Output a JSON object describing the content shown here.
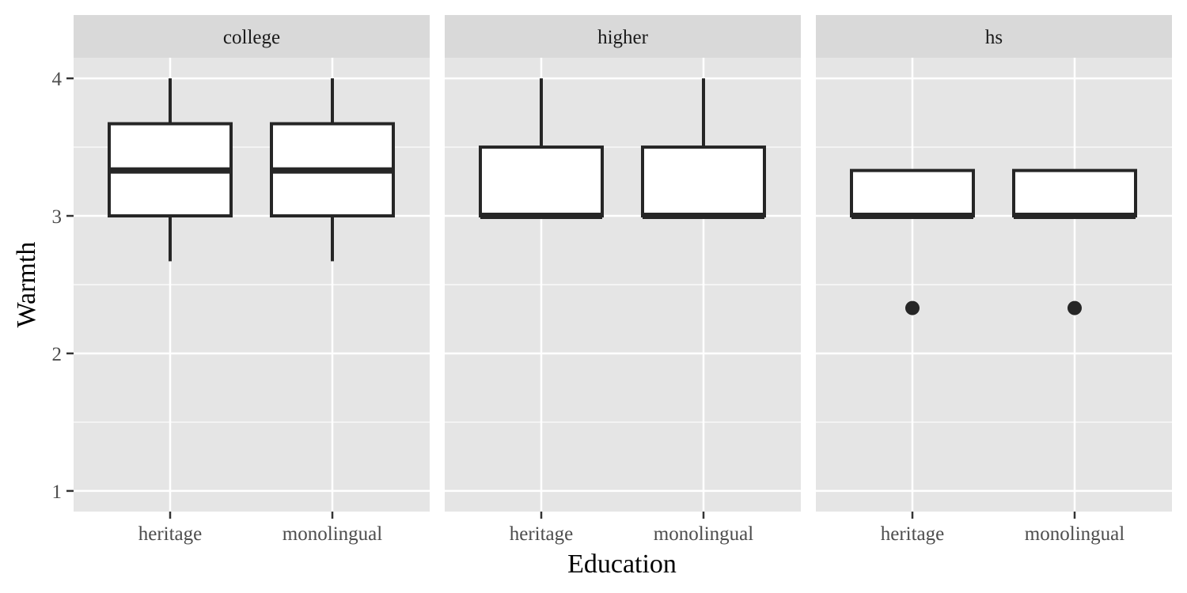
{
  "chart_data": {
    "type": "box",
    "xlabel": "Education",
    "ylabel": "Warmth",
    "ylim": [
      0.85,
      4.15
    ],
    "yticks": [
      1,
      2,
      3,
      4
    ],
    "categories": [
      "heritage",
      "monolingual"
    ],
    "facets": [
      {
        "label": "college",
        "boxes": [
          {
            "category": "heritage",
            "whisker_low": 2.67,
            "q1": 3.0,
            "median": 3.33,
            "q3": 3.67,
            "whisker_high": 4.0,
            "outliers": []
          },
          {
            "category": "monolingual",
            "whisker_low": 2.67,
            "q1": 3.0,
            "median": 3.33,
            "q3": 3.67,
            "whisker_high": 4.0,
            "outliers": []
          }
        ]
      },
      {
        "label": "higher",
        "boxes": [
          {
            "category": "heritage",
            "whisker_low": 3.0,
            "q1": 3.0,
            "median": 3.0,
            "q3": 3.5,
            "whisker_high": 4.0,
            "outliers": []
          },
          {
            "category": "monolingual",
            "whisker_low": 3.0,
            "q1": 3.0,
            "median": 3.0,
            "q3": 3.5,
            "whisker_high": 4.0,
            "outliers": []
          }
        ]
      },
      {
        "label": "hs",
        "boxes": [
          {
            "category": "heritage",
            "whisker_low": 3.0,
            "q1": 3.0,
            "median": 3.0,
            "q3": 3.33,
            "whisker_high": 3.33,
            "outliers": [
              2.33
            ]
          },
          {
            "category": "monolingual",
            "whisker_low": 3.0,
            "q1": 3.0,
            "median": 3.0,
            "q3": 3.33,
            "whisker_high": 3.33,
            "outliers": [
              2.33
            ]
          }
        ]
      }
    ],
    "colors": {
      "panel_background": "#e5e5e5",
      "strip_background": "#d9d9d9",
      "grid": "#ffffff",
      "box_fill": "#ffffff",
      "box_line": "#262626",
      "tick_text": "#4d4d4d"
    },
    "grid": true,
    "legend": "none"
  }
}
